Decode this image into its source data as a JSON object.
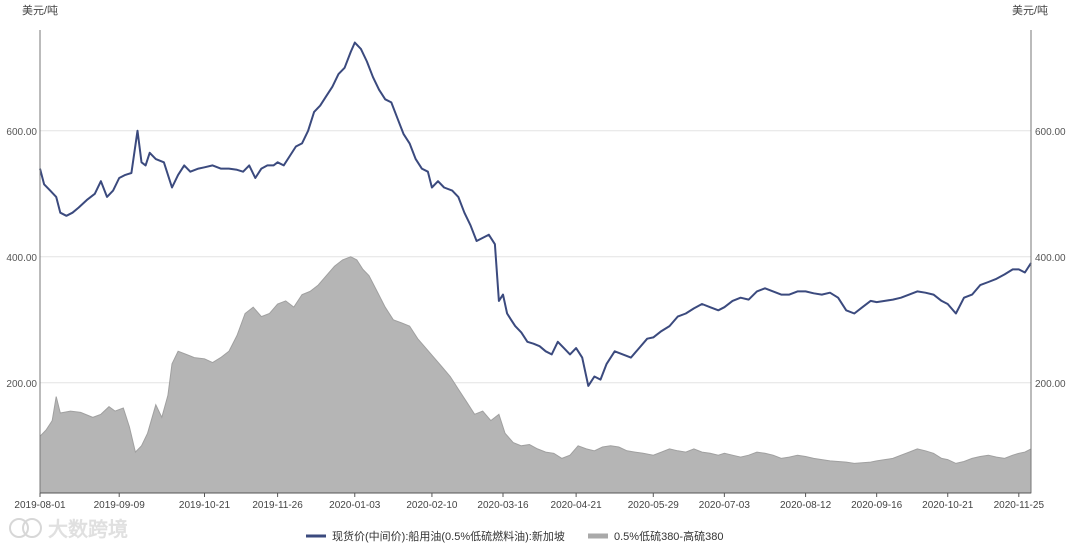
{
  "chart_data": {
    "type": "line",
    "y_unit_left": "美元/吨",
    "y_unit_right": "美元/吨",
    "ylim": [
      25,
      760
    ],
    "yticks": [
      200,
      400,
      600
    ],
    "ytick_labels": [
      "200.00",
      "400.00",
      "600.00"
    ],
    "xlim": [
      "2019-08-01",
      "2020-12-01"
    ],
    "xticks": [
      "2019-08-01",
      "2019-09-09",
      "2019-10-21",
      "2019-11-26",
      "2020-01-03",
      "2020-02-10",
      "2020-03-16",
      "2020-04-21",
      "2020-05-29",
      "2020-07-03",
      "2020-08-12",
      "2020-09-16",
      "2020-10-21",
      "2020-11-25"
    ],
    "legend_position": "bottom-center",
    "watermark": "大数跨境",
    "series": [
      {
        "name": "现货价(中间价):船用油(0.5%低硫燃料油):新加坡",
        "type": "line",
        "color": "#3b4a7e",
        "points": [
          [
            "2019-08-01",
            540
          ],
          [
            "2019-08-03",
            515
          ],
          [
            "2019-08-06",
            505
          ],
          [
            "2019-08-09",
            495
          ],
          [
            "2019-08-11",
            470
          ],
          [
            "2019-08-14",
            465
          ],
          [
            "2019-08-17",
            470
          ],
          [
            "2019-08-20",
            478
          ],
          [
            "2019-08-24",
            490
          ],
          [
            "2019-08-28",
            500
          ],
          [
            "2019-08-31",
            520
          ],
          [
            "2019-09-03",
            495
          ],
          [
            "2019-09-06",
            505
          ],
          [
            "2019-09-09",
            525
          ],
          [
            "2019-09-12",
            530
          ],
          [
            "2019-09-15",
            533
          ],
          [
            "2019-09-18",
            600
          ],
          [
            "2019-09-20",
            550
          ],
          [
            "2019-09-22",
            545
          ],
          [
            "2019-09-24",
            565
          ],
          [
            "2019-09-27",
            555
          ],
          [
            "2019-10-01",
            550
          ],
          [
            "2019-10-05",
            510
          ],
          [
            "2019-10-08",
            530
          ],
          [
            "2019-10-11",
            545
          ],
          [
            "2019-10-14",
            535
          ],
          [
            "2019-10-18",
            540
          ],
          [
            "2019-10-21",
            542
          ],
          [
            "2019-10-25",
            545
          ],
          [
            "2019-10-29",
            540
          ],
          [
            "2019-11-02",
            540
          ],
          [
            "2019-11-06",
            538
          ],
          [
            "2019-11-09",
            535
          ],
          [
            "2019-11-12",
            545
          ],
          [
            "2019-11-15",
            525
          ],
          [
            "2019-11-18",
            540
          ],
          [
            "2019-11-21",
            545
          ],
          [
            "2019-11-24",
            545
          ],
          [
            "2019-11-26",
            550
          ],
          [
            "2019-11-29",
            545
          ],
          [
            "2019-12-02",
            560
          ],
          [
            "2019-12-05",
            575
          ],
          [
            "2019-12-08",
            580
          ],
          [
            "2019-12-11",
            600
          ],
          [
            "2019-12-14",
            630
          ],
          [
            "2019-12-17",
            640
          ],
          [
            "2019-12-20",
            655
          ],
          [
            "2019-12-23",
            670
          ],
          [
            "2019-12-26",
            690
          ],
          [
            "2019-12-29",
            700
          ],
          [
            "2020-01-01",
            725
          ],
          [
            "2020-01-03",
            740
          ],
          [
            "2020-01-06",
            730
          ],
          [
            "2020-01-09",
            710
          ],
          [
            "2020-01-12",
            685
          ],
          [
            "2020-01-15",
            665
          ],
          [
            "2020-01-18",
            650
          ],
          [
            "2020-01-21",
            645
          ],
          [
            "2020-01-24",
            620
          ],
          [
            "2020-01-27",
            595
          ],
          [
            "2020-01-30",
            580
          ],
          [
            "2020-02-02",
            555
          ],
          [
            "2020-02-05",
            540
          ],
          [
            "2020-02-08",
            535
          ],
          [
            "2020-02-10",
            510
          ],
          [
            "2020-02-13",
            520
          ],
          [
            "2020-02-16",
            510
          ],
          [
            "2020-02-20",
            505
          ],
          [
            "2020-02-23",
            495
          ],
          [
            "2020-02-26",
            470
          ],
          [
            "2020-02-29",
            450
          ],
          [
            "2020-03-03",
            425
          ],
          [
            "2020-03-06",
            430
          ],
          [
            "2020-03-09",
            435
          ],
          [
            "2020-03-12",
            420
          ],
          [
            "2020-03-14",
            330
          ],
          [
            "2020-03-16",
            340
          ],
          [
            "2020-03-18",
            310
          ],
          [
            "2020-03-20",
            300
          ],
          [
            "2020-03-22",
            290
          ],
          [
            "2020-03-25",
            280
          ],
          [
            "2020-03-28",
            265
          ],
          [
            "2020-03-31",
            262
          ],
          [
            "2020-04-03",
            258
          ],
          [
            "2020-04-06",
            250
          ],
          [
            "2020-04-09",
            245
          ],
          [
            "2020-04-12",
            265
          ],
          [
            "2020-04-15",
            255
          ],
          [
            "2020-04-18",
            245
          ],
          [
            "2020-04-21",
            255
          ],
          [
            "2020-04-24",
            240
          ],
          [
            "2020-04-27",
            195
          ],
          [
            "2020-04-30",
            210
          ],
          [
            "2020-05-03",
            205
          ],
          [
            "2020-05-06",
            230
          ],
          [
            "2020-05-10",
            250
          ],
          [
            "2020-05-14",
            245
          ],
          [
            "2020-05-18",
            240
          ],
          [
            "2020-05-22",
            255
          ],
          [
            "2020-05-26",
            270
          ],
          [
            "2020-05-29",
            272
          ],
          [
            "2020-06-02",
            282
          ],
          [
            "2020-06-06",
            290
          ],
          [
            "2020-06-10",
            305
          ],
          [
            "2020-06-14",
            310
          ],
          [
            "2020-06-18",
            318
          ],
          [
            "2020-06-22",
            325
          ],
          [
            "2020-06-26",
            320
          ],
          [
            "2020-06-30",
            315
          ],
          [
            "2020-07-03",
            320
          ],
          [
            "2020-07-07",
            330
          ],
          [
            "2020-07-11",
            335
          ],
          [
            "2020-07-15",
            332
          ],
          [
            "2020-07-19",
            345
          ],
          [
            "2020-07-23",
            350
          ],
          [
            "2020-07-27",
            345
          ],
          [
            "2020-07-31",
            340
          ],
          [
            "2020-08-04",
            340
          ],
          [
            "2020-08-08",
            345
          ],
          [
            "2020-08-12",
            345
          ],
          [
            "2020-08-16",
            342
          ],
          [
            "2020-08-20",
            340
          ],
          [
            "2020-08-24",
            343
          ],
          [
            "2020-08-28",
            335
          ],
          [
            "2020-09-01",
            315
          ],
          [
            "2020-09-05",
            310
          ],
          [
            "2020-09-09",
            320
          ],
          [
            "2020-09-13",
            330
          ],
          [
            "2020-09-16",
            328
          ],
          [
            "2020-09-20",
            330
          ],
          [
            "2020-09-24",
            332
          ],
          [
            "2020-09-28",
            335
          ],
          [
            "2020-10-02",
            340
          ],
          [
            "2020-10-06",
            345
          ],
          [
            "2020-10-10",
            343
          ],
          [
            "2020-10-14",
            340
          ],
          [
            "2020-10-18",
            330
          ],
          [
            "2020-10-21",
            325
          ],
          [
            "2020-10-25",
            310
          ],
          [
            "2020-10-29",
            335
          ],
          [
            "2020-11-02",
            340
          ],
          [
            "2020-11-06",
            355
          ],
          [
            "2020-11-10",
            360
          ],
          [
            "2020-11-14",
            365
          ],
          [
            "2020-11-18",
            372
          ],
          [
            "2020-11-22",
            380
          ],
          [
            "2020-11-25",
            380
          ],
          [
            "2020-11-28",
            375
          ],
          [
            "2020-12-01",
            390
          ]
        ]
      },
      {
        "name": "0.5%低硫380-高硫380",
        "type": "area",
        "color": "#a9a9a9",
        "points": [
          [
            "2019-08-01",
            115
          ],
          [
            "2019-08-04",
            125
          ],
          [
            "2019-08-07",
            140
          ],
          [
            "2019-08-09",
            178
          ],
          [
            "2019-08-11",
            152
          ],
          [
            "2019-08-16",
            155
          ],
          [
            "2019-08-21",
            153
          ],
          [
            "2019-08-27",
            145
          ],
          [
            "2019-08-31",
            150
          ],
          [
            "2019-09-04",
            162
          ],
          [
            "2019-09-07",
            155
          ],
          [
            "2019-09-11",
            160
          ],
          [
            "2019-09-14",
            130
          ],
          [
            "2019-09-17",
            90
          ],
          [
            "2019-09-20",
            100
          ],
          [
            "2019-09-23",
            120
          ],
          [
            "2019-09-27",
            165
          ],
          [
            "2019-09-30",
            145
          ],
          [
            "2019-10-03",
            180
          ],
          [
            "2019-10-05",
            230
          ],
          [
            "2019-10-08",
            250
          ],
          [
            "2019-10-12",
            245
          ],
          [
            "2019-10-16",
            240
          ],
          [
            "2019-10-21",
            238
          ],
          [
            "2019-10-25",
            232
          ],
          [
            "2019-10-29",
            240
          ],
          [
            "2019-11-02",
            250
          ],
          [
            "2019-11-06",
            275
          ],
          [
            "2019-11-10",
            310
          ],
          [
            "2019-11-14",
            320
          ],
          [
            "2019-11-18",
            305
          ],
          [
            "2019-11-22",
            310
          ],
          [
            "2019-11-26",
            325
          ],
          [
            "2019-11-30",
            330
          ],
          [
            "2019-12-04",
            320
          ],
          [
            "2019-12-08",
            340
          ],
          [
            "2019-12-12",
            345
          ],
          [
            "2019-12-16",
            355
          ],
          [
            "2019-12-20",
            370
          ],
          [
            "2019-12-24",
            385
          ],
          [
            "2019-12-28",
            395
          ],
          [
            "2020-01-01",
            400
          ],
          [
            "2020-01-04",
            395
          ],
          [
            "2020-01-07",
            380
          ],
          [
            "2020-01-10",
            370
          ],
          [
            "2020-01-14",
            345
          ],
          [
            "2020-01-18",
            320
          ],
          [
            "2020-01-22",
            300
          ],
          [
            "2020-01-26",
            295
          ],
          [
            "2020-01-30",
            290
          ],
          [
            "2020-02-03",
            270
          ],
          [
            "2020-02-07",
            255
          ],
          [
            "2020-02-11",
            240
          ],
          [
            "2020-02-15",
            225
          ],
          [
            "2020-02-19",
            210
          ],
          [
            "2020-02-23",
            190
          ],
          [
            "2020-02-27",
            170
          ],
          [
            "2020-03-02",
            150
          ],
          [
            "2020-03-06",
            155
          ],
          [
            "2020-03-10",
            140
          ],
          [
            "2020-03-14",
            150
          ],
          [
            "2020-03-17",
            120
          ],
          [
            "2020-03-21",
            105
          ],
          [
            "2020-03-25",
            100
          ],
          [
            "2020-03-29",
            102
          ],
          [
            "2020-04-02",
            95
          ],
          [
            "2020-04-06",
            90
          ],
          [
            "2020-04-10",
            88
          ],
          [
            "2020-04-14",
            80
          ],
          [
            "2020-04-18",
            85
          ],
          [
            "2020-04-22",
            100
          ],
          [
            "2020-04-26",
            95
          ],
          [
            "2020-04-30",
            92
          ],
          [
            "2020-05-04",
            98
          ],
          [
            "2020-05-08",
            100
          ],
          [
            "2020-05-12",
            98
          ],
          [
            "2020-05-16",
            92
          ],
          [
            "2020-05-20",
            90
          ],
          [
            "2020-05-24",
            88
          ],
          [
            "2020-05-29",
            85
          ],
          [
            "2020-06-02",
            90
          ],
          [
            "2020-06-06",
            95
          ],
          [
            "2020-06-10",
            92
          ],
          [
            "2020-06-14",
            90
          ],
          [
            "2020-06-18",
            95
          ],
          [
            "2020-06-22",
            90
          ],
          [
            "2020-06-26",
            88
          ],
          [
            "2020-06-30",
            85
          ],
          [
            "2020-07-03",
            88
          ],
          [
            "2020-07-07",
            85
          ],
          [
            "2020-07-11",
            82
          ],
          [
            "2020-07-15",
            85
          ],
          [
            "2020-07-19",
            90
          ],
          [
            "2020-07-23",
            88
          ],
          [
            "2020-07-27",
            85
          ],
          [
            "2020-07-31",
            80
          ],
          [
            "2020-08-04",
            82
          ],
          [
            "2020-08-08",
            85
          ],
          [
            "2020-08-12",
            83
          ],
          [
            "2020-08-16",
            80
          ],
          [
            "2020-08-20",
            78
          ],
          [
            "2020-08-24",
            76
          ],
          [
            "2020-08-28",
            75
          ],
          [
            "2020-09-01",
            74
          ],
          [
            "2020-09-05",
            72
          ],
          [
            "2020-09-09",
            73
          ],
          [
            "2020-09-13",
            74
          ],
          [
            "2020-09-16",
            76
          ],
          [
            "2020-09-20",
            78
          ],
          [
            "2020-09-24",
            80
          ],
          [
            "2020-09-28",
            85
          ],
          [
            "2020-10-02",
            90
          ],
          [
            "2020-10-06",
            95
          ],
          [
            "2020-10-10",
            92
          ],
          [
            "2020-10-14",
            88
          ],
          [
            "2020-10-18",
            80
          ],
          [
            "2020-10-21",
            78
          ],
          [
            "2020-10-25",
            72
          ],
          [
            "2020-10-29",
            75
          ],
          [
            "2020-11-02",
            80
          ],
          [
            "2020-11-06",
            83
          ],
          [
            "2020-11-10",
            85
          ],
          [
            "2020-11-14",
            82
          ],
          [
            "2020-11-18",
            80
          ],
          [
            "2020-11-22",
            85
          ],
          [
            "2020-11-25",
            88
          ],
          [
            "2020-11-28",
            90
          ],
          [
            "2020-12-01",
            95
          ]
        ]
      }
    ]
  }
}
